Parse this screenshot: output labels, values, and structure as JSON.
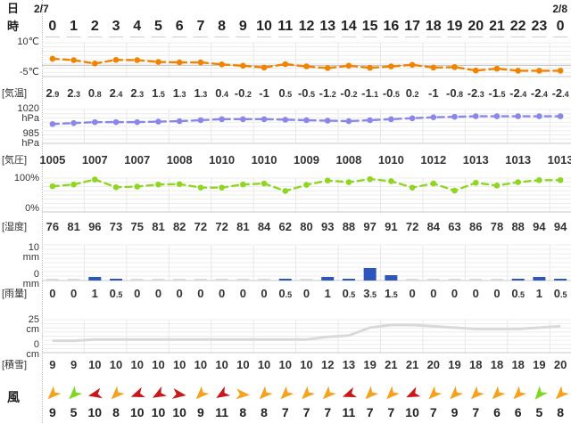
{
  "header": {
    "day_label": "日",
    "hour_label": "時",
    "date_left": "2/7",
    "date_right": "2/8",
    "hours": [
      "0",
      "1",
      "2",
      "3",
      "4",
      "5",
      "6",
      "7",
      "8",
      "9",
      "10",
      "11",
      "12",
      "13",
      "14",
      "15",
      "16",
      "17",
      "18",
      "19",
      "20",
      "21",
      "22",
      "23",
      "0"
    ]
  },
  "chart_data": [
    {
      "type": "line",
      "name": "temperature",
      "label": "[気温]",
      "unit_top": "10℃",
      "unit_bottom": "-5℃",
      "ylim": [
        -5,
        10
      ],
      "x_step": 1,
      "color": "#F08300",
      "values": [
        2.9,
        2.3,
        0.8,
        2.4,
        2.3,
        1.5,
        1.3,
        1.3,
        0.4,
        -0.2,
        -1,
        0.5,
        -0.5,
        -1.2,
        -0.2,
        -1.1,
        -0.5,
        0.2,
        -1,
        -0.8,
        -2.3,
        -1.5,
        -2.4,
        -2.4,
        -2.4
      ]
    },
    {
      "type": "line",
      "name": "pressure",
      "label": "[気圧]",
      "unit_top": "1020\nhPa",
      "unit_bottom": "985\nhPa",
      "ylim": [
        985,
        1020
      ],
      "x_step": 2,
      "color": "#8A87E8",
      "values": [
        1005,
        1007,
        1007,
        1008,
        1010,
        1010,
        1009,
        1008,
        1010,
        1012,
        1013,
        1013,
        1013
      ]
    },
    {
      "type": "line",
      "name": "humidity",
      "label": "[湿度]",
      "unit_top": "100%",
      "unit_bottom": "0%",
      "ylim": [
        0,
        100
      ],
      "x_step": 1,
      "color": "#8FD621",
      "values": [
        76,
        81,
        96,
        73,
        75,
        81,
        82,
        72,
        72,
        81,
        84,
        62,
        80,
        93,
        88,
        97,
        91,
        72,
        84,
        63,
        86,
        78,
        88,
        94,
        94
      ]
    },
    {
      "type": "bar",
      "name": "rainfall",
      "label": "[雨量]",
      "unit_top": "10\nmm",
      "unit_bottom": "0\nmm",
      "ylim": [
        0,
        10
      ],
      "x_step": 1,
      "color": "#2D55BE",
      "values": [
        0,
        0,
        1,
        0.5,
        0,
        0,
        0,
        0,
        0,
        0,
        0,
        0.5,
        0,
        1,
        0.5,
        3.5,
        1.5,
        0,
        0,
        0,
        0,
        0,
        0.5,
        1,
        0.5
      ]
    },
    {
      "type": "area",
      "name": "snow-depth",
      "label": "[積雪]",
      "unit_top": "25\ncm",
      "unit_bottom": "0\ncm",
      "ylim": [
        0,
        25
      ],
      "x_step": 1,
      "color": "#D9D9D9",
      "values": [
        9,
        9,
        10,
        10,
        10,
        10,
        10,
        10,
        10,
        10,
        10,
        10,
        10,
        12,
        13,
        19,
        21,
        21,
        20,
        19,
        18,
        18,
        18,
        19,
        20
      ]
    }
  ],
  "wind": {
    "label": "風",
    "speeds": [
      9,
      5,
      10,
      8,
      10,
      10,
      10,
      9,
      11,
      8,
      8,
      7,
      7,
      7,
      11,
      7,
      7,
      10,
      7,
      9,
      7,
      6,
      6,
      5,
      8
    ],
    "directions_deg": [
      135,
      135,
      168,
      135,
      160,
      150,
      8,
      135,
      148,
      5,
      135,
      135,
      135,
      135,
      160,
      135,
      135,
      155,
      135,
      135,
      135,
      135,
      135,
      130,
      135
    ],
    "colors": [
      "#F6A21E",
      "#7CD920",
      "#C8181A",
      "#F6A21E",
      "#C8181A",
      "#C8181A",
      "#C8181A",
      "#F6A21E",
      "#C8181A",
      "#F6A21E",
      "#F6A21E",
      "#F6A21E",
      "#F6A21E",
      "#F6A21E",
      "#C8181A",
      "#F6A21E",
      "#F6A21E",
      "#C8181A",
      "#F6A21E",
      "#F6A21E",
      "#F6A21E",
      "#F6A21E",
      "#F6A21E",
      "#7CD920",
      "#F6A21E"
    ],
    "speed_color_legend": {
      "5_or_less": "#7CD920",
      "6_to_9": "#F6A21E",
      "10_or_more": "#C8181A"
    }
  }
}
